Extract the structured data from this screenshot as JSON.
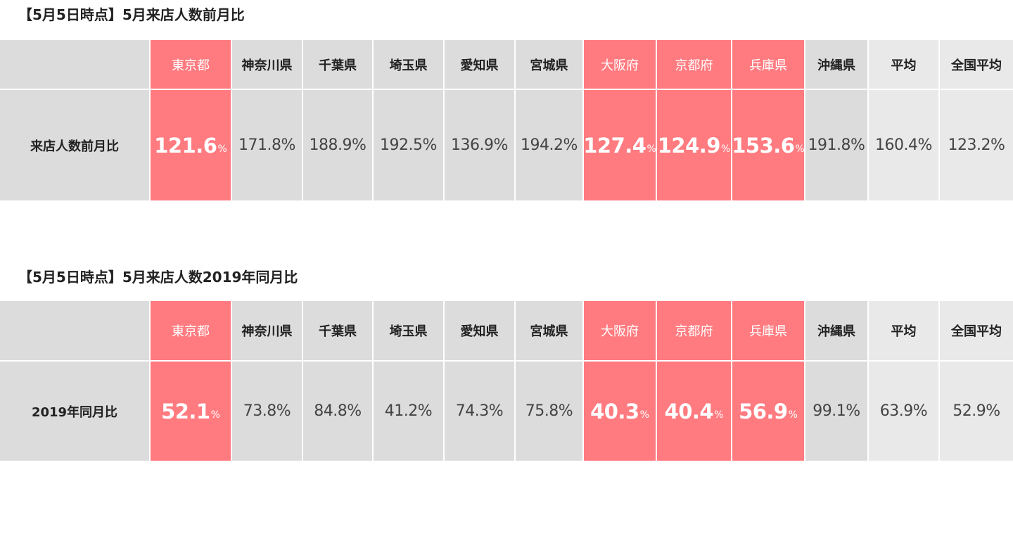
{
  "chart_data": [
    {
      "type": "table",
      "title": "【5月5日時点】5月来店人数前月比",
      "columns": [
        "東京都",
        "神奈川県",
        "千葉県",
        "埼玉県",
        "愛知県",
        "宮城県",
        "大阪府",
        "京都府",
        "兵庫県",
        "沖縄県",
        "平均",
        "全国平均"
      ],
      "row_label": "来店人数前月比",
      "values": [
        121.6,
        171.8,
        188.9,
        192.5,
        136.9,
        194.2,
        127.4,
        124.9,
        153.6,
        191.8,
        160.4,
        123.2
      ],
      "value_labels": [
        "121.6",
        "171.8%",
        "188.9%",
        "192.5%",
        "136.9%",
        "194.2%",
        "127.4",
        "124.9",
        "153.6",
        "191.8%",
        "160.4%",
        "123.2%"
      ],
      "unit": "%",
      "highlighted": [
        "東京都",
        "大阪府",
        "京都府",
        "兵庫県"
      ]
    },
    {
      "type": "table",
      "title": "【5月5日時点】5月来店人数2019年同月比",
      "columns": [
        "東京都",
        "神奈川県",
        "千葉県",
        "埼玉県",
        "愛知県",
        "宮城県",
        "大阪府",
        "京都府",
        "兵庫県",
        "沖縄県",
        "平均",
        "全国平均"
      ],
      "row_label": "2019年同月比",
      "values": [
        52.1,
        73.8,
        84.8,
        41.2,
        74.3,
        75.8,
        40.3,
        40.4,
        56.9,
        99.1,
        63.9,
        52.9
      ],
      "value_labels": [
        "52.1",
        "73.8%",
        "84.8%",
        "41.2%",
        "74.3%",
        "75.8%",
        "40.3",
        "40.4",
        "56.9",
        "99.1%",
        "63.9%",
        "52.9%"
      ],
      "unit": "%",
      "highlighted": [
        "東京都",
        "大阪府",
        "京都府",
        "兵庫県"
      ]
    }
  ],
  "colors": {
    "highlight": "#ff7b80",
    "header_gray": "#dcdcdc",
    "light_gray": "#e9e9e9"
  }
}
